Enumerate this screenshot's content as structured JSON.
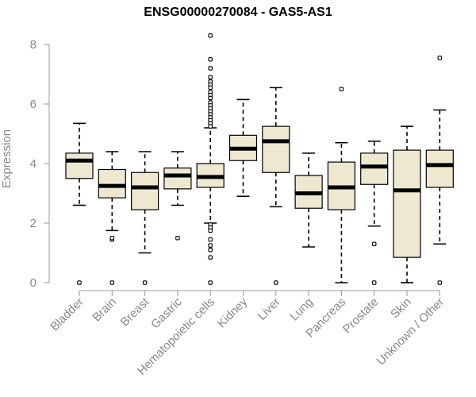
{
  "chart_data": {
    "type": "boxplot",
    "title": "ENSG00000270084 - GAS5-AS1",
    "xlabel": "",
    "ylabel": "Expression",
    "ylim": [
      0,
      8
    ],
    "yticks": [
      0,
      2,
      4,
      6,
      8
    ],
    "grid": false,
    "legend": "none",
    "colors": {
      "box_fill": "#efe8d1",
      "stroke": "#000000",
      "axis": "#999999",
      "text": "#888888"
    },
    "categories": [
      "Bladder",
      "Brain",
      "Breast",
      "Gastric",
      "Hematopoietic cells",
      "Kidney",
      "Liver",
      "Lung",
      "Pancreas",
      "Prostate",
      "Skin",
      "Unknown / Other"
    ],
    "boxes": [
      {
        "category": "Bladder",
        "min": 2.6,
        "q1": 3.5,
        "median": 4.1,
        "q3": 4.35,
        "max": 5.35,
        "outliers": [
          0
        ]
      },
      {
        "category": "Brain",
        "min": 1.75,
        "q1": 2.85,
        "median": 3.25,
        "q3": 3.8,
        "max": 4.4,
        "outliers": [
          1.45,
          1.5,
          0
        ]
      },
      {
        "category": "Breast",
        "min": 1.0,
        "q1": 2.45,
        "median": 3.2,
        "q3": 3.7,
        "max": 4.4,
        "outliers": [
          0
        ]
      },
      {
        "category": "Gastric",
        "min": 2.6,
        "q1": 3.15,
        "median": 3.6,
        "q3": 3.85,
        "max": 4.4,
        "outliers": [
          1.5
        ]
      },
      {
        "category": "Hematopoietic cells",
        "min": 2.0,
        "q1": 3.2,
        "median": 3.55,
        "q3": 4.0,
        "max": 5.2,
        "outliers": [
          8.3,
          7.5,
          7.2,
          6.9,
          6.75,
          6.65,
          6.55,
          6.4,
          6.3,
          6.2,
          6.05,
          5.95,
          5.85,
          5.75,
          5.65,
          5.55,
          5.45,
          5.35,
          5.25,
          1.95,
          1.85,
          1.75,
          1.45,
          1.25,
          1.1,
          0.85,
          0
        ]
      },
      {
        "category": "Kidney",
        "min": 2.9,
        "q1": 4.1,
        "median": 4.5,
        "q3": 4.95,
        "max": 6.15,
        "outliers": []
      },
      {
        "category": "Liver",
        "min": 2.55,
        "q1": 3.7,
        "median": 4.75,
        "q3": 5.25,
        "max": 6.55,
        "outliers": [
          0
        ]
      },
      {
        "category": "Lung",
        "min": 1.2,
        "q1": 2.5,
        "median": 3.0,
        "q3": 3.6,
        "max": 4.35,
        "outliers": []
      },
      {
        "category": "Pancreas",
        "min": 0.0,
        "q1": 2.45,
        "median": 3.2,
        "q3": 4.05,
        "max": 4.7,
        "outliers": [
          6.5
        ]
      },
      {
        "category": "Prostate",
        "min": 1.9,
        "q1": 3.3,
        "median": 3.9,
        "q3": 4.35,
        "max": 4.75,
        "outliers": [
          1.3,
          0
        ]
      },
      {
        "category": "Skin",
        "min": 0.0,
        "q1": 0.85,
        "median": 3.1,
        "q3": 4.45,
        "max": 5.25,
        "outliers": []
      },
      {
        "category": "Unknown / Other",
        "min": 1.3,
        "q1": 3.2,
        "median": 3.95,
        "q3": 4.45,
        "max": 5.8,
        "outliers": [
          7.55,
          0
        ]
      }
    ]
  }
}
